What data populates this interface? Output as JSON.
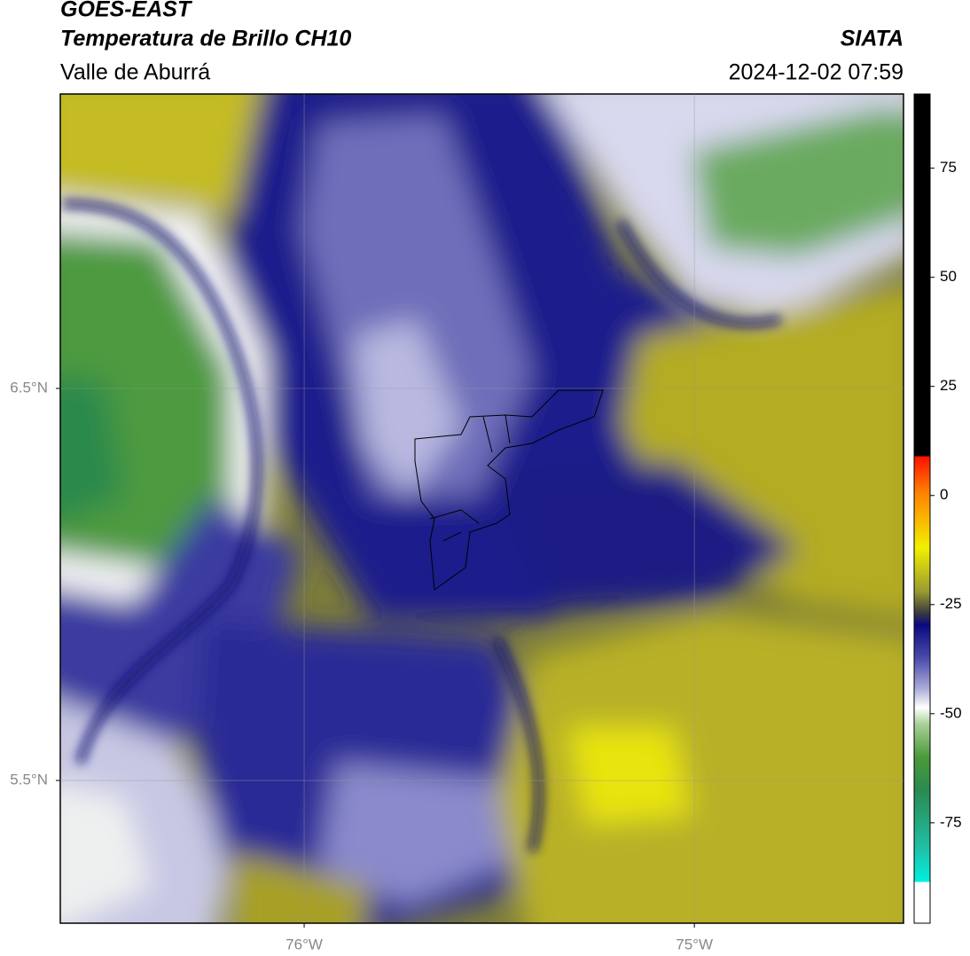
{
  "header": {
    "title": "GOES-EAST",
    "subtitle": "Temperatura de Brillo CH10",
    "region": "Valle de Aburrá",
    "source": "SIATA",
    "datetime": "2024-12-02 07:59"
  },
  "map": {
    "lat_lim": [
      5.136,
      7.251
    ],
    "lon_lim": [
      -76.625,
      -74.464
    ],
    "lat_ticks": [
      {
        "value": 5.5,
        "label": "5.5°N"
      },
      {
        "value": 6.5,
        "label": "6.5°N"
      }
    ],
    "lon_ticks": [
      {
        "value": -76,
        "label": "76°W"
      },
      {
        "value": -75,
        "label": "75°W"
      }
    ],
    "grid": true
  },
  "colorbar": {
    "lim": [
      -98,
      92
    ],
    "ticks": [
      -75,
      -50,
      -25,
      0,
      25,
      50,
      75
    ]
  }
}
